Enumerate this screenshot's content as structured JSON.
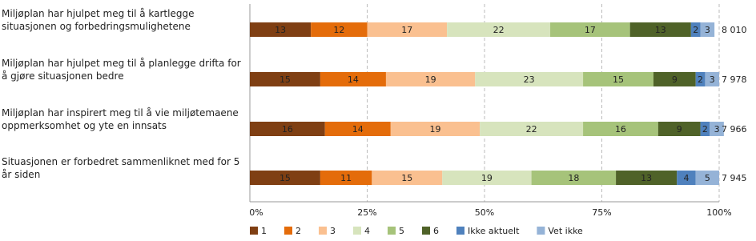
{
  "chart_data": {
    "type": "stacked-bar-horizontal",
    "categories": [
      "Miljøplan har hjulpet meg til å kartlegge situasjonen og forbedringsmulighetene",
      "Miljøplan har hjulpet meg til å planlegge drifta for å gjøre situasjonen bedre",
      "Miljøplan har inspirert meg til å vie miljøtemaene oppmerksomhet og yte en innsats",
      "Situasjonen er forbedret sammenliknet med for 5 år siden"
    ],
    "series": [
      {
        "name": "1",
        "color": "#7f3f13",
        "values": [
          13,
          15,
          16,
          15
        ]
      },
      {
        "name": "2",
        "color": "#e46c0a",
        "values": [
          12,
          14,
          14,
          11
        ]
      },
      {
        "name": "3",
        "color": "#fac090",
        "values": [
          17,
          19,
          19,
          15
        ]
      },
      {
        "name": "4",
        "color": "#d7e4bd",
        "values": [
          22,
          23,
          22,
          19
        ]
      },
      {
        "name": "5",
        "color": "#a6c37a",
        "values": [
          17,
          15,
          16,
          18
        ]
      },
      {
        "name": "6",
        "color": "#4f6228",
        "values": [
          13,
          9,
          9,
          13
        ]
      },
      {
        "name": "Ikke aktuelt",
        "color": "#4f81bd",
        "values": [
          2,
          2,
          2,
          4
        ]
      },
      {
        "name": "Vet ikke",
        "color": "#95b3d7",
        "values": [
          3,
          3,
          3,
          5
        ]
      }
    ],
    "totals": {
      "values": [
        8010,
        7978,
        7966,
        7945
      ],
      "value_labels": [
        "8 010",
        "7 978",
        "7 966",
        "7 945"
      ]
    },
    "xlim": [
      0,
      100
    ],
    "xticks": [
      {
        "value": 0,
        "label": "0%"
      },
      {
        "value": 25,
        "label": "25%"
      },
      {
        "value": 50,
        "label": "50%"
      },
      {
        "value": 75,
        "label": "75%"
      },
      {
        "value": 100,
        "label": "100%"
      }
    ],
    "grid": true,
    "legend": "bottom"
  }
}
